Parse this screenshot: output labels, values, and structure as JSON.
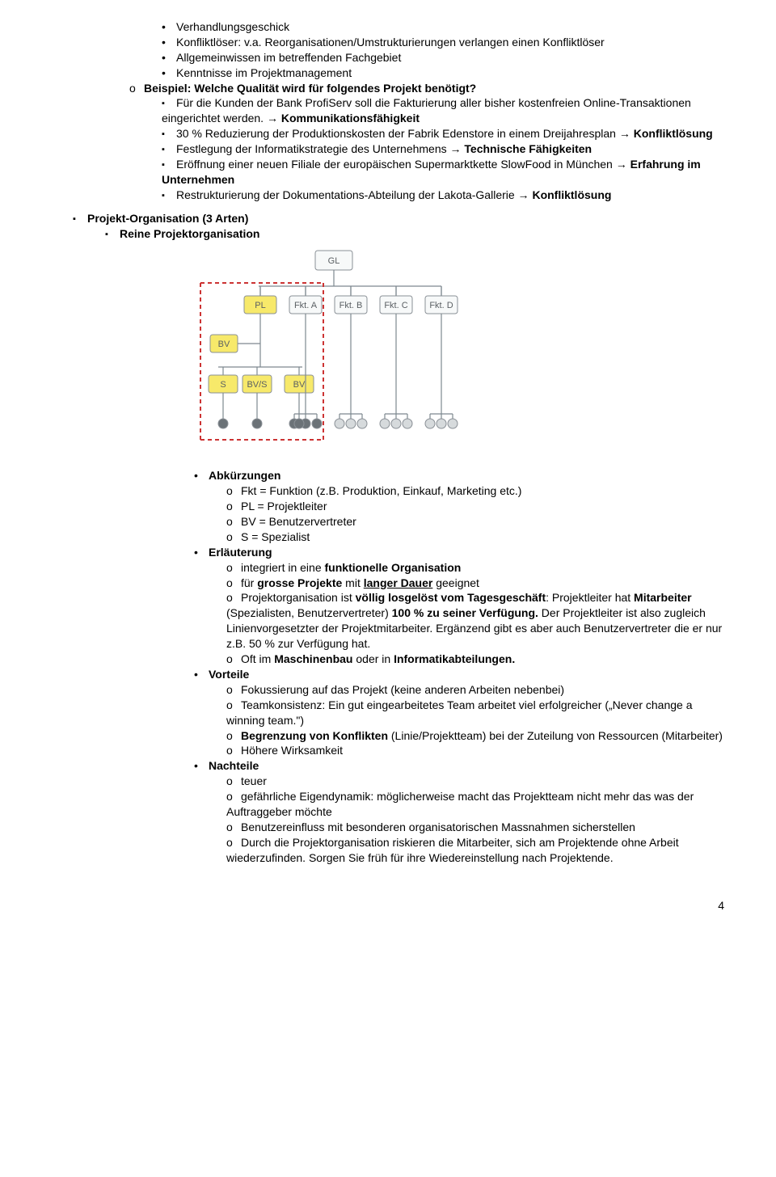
{
  "top": {
    "i1": "Verhandlungsgeschick",
    "i2": "Konfliktlöser: v.a. Reorganisationen/Umstrukturierungen verlangen einen Konfliktlöser",
    "i3": "Allgemeinwissen im betreffenden Fachgebiet",
    "i4": "Kenntnisse im Projektmanagement",
    "beispiel": "Beispiel: Welche Qualität wird für folgendes Projekt benötigt?",
    "b1a": "Für die Kunden der Bank ProfiServ soll die Fakturierung aller bisher kostenfreien Online-Transaktionen eingerichtet werden. → ",
    "b1b": "Kommunikationsfähigkeit",
    "b2a": "30 % Reduzierung der Produktionskosten der Fabrik Edenstore in einem Dreijahresplan → ",
    "b2b": "Konfliktlösung",
    "b3a": "Festlegung der Informatikstrategie des Unternehmens → ",
    "b3b": "Technische Fähigkeiten",
    "b4a": "Eröffnung einer neuen Filiale der europäischen Supermarktkette SlowFood in München → ",
    "b4b": "Erfahrung im Unternehmen",
    "b5a": "Restrukturierung der Dokumentations-Abteilung der Lakota-Gallerie → ",
    "b5b": "Konfliktlösung"
  },
  "section": {
    "title": "Projekt-Organisation (3 Arten)",
    "sub": "Reine Projektorganisation"
  },
  "diagram": {
    "bg": "#ffffff",
    "line": "#7d888f",
    "dashed": "#cc3333",
    "box_white_fill": "#f7f9f9",
    "box_yellow_fill": "#f7e96a",
    "box_border": "#8a9096",
    "text": "#5a5f63",
    "node_dark": "#6b7277",
    "node_light": "#d6dadc",
    "gl": "GL",
    "pl": "PL",
    "fa": "Fkt. A",
    "fb": "Fkt. B",
    "fc": "Fkt. C",
    "fd": "Fkt. D",
    "bv": "BV",
    "s": "S",
    "bvs": "BV/S",
    "bv2": "BV"
  },
  "abk": {
    "h": "Abkürzungen",
    "a1": "Fkt = Funktion (z.B. Produktion, Einkauf, Marketing etc.)",
    "a2": "PL = Projektleiter",
    "a3": "BV = Benutzervertreter",
    "a4": "S = Spezialist"
  },
  "erl": {
    "h": "Erläuterung",
    "e1a": "integriert in eine ",
    "e1b": "funktionelle Organisation",
    "e2a": "für ",
    "e2b": "grosse Projekte",
    "e2c": " mit ",
    "e2d": "langer Dauer",
    "e2e": " geeignet",
    "e3a": "Projektorganisation ist ",
    "e3b": "völlig losgelöst vom Tagesgeschäft",
    "e3c": ": Projektleiter hat ",
    "e3d": "Mitarbeiter",
    "e3e": " (Spezialisten, Benutzervertreter) ",
    "e3f": "100 % zu seiner Verfügung.",
    "e3g": " Der Projektleiter ist also zugleich Linienvorgesetzter der Projektmitarbeiter. Ergänzend gibt es aber auch Benutzervertreter die er nur z.B. 50 % zur Verfügung hat.",
    "e4a": "Oft im ",
    "e4b": "Maschinenbau",
    "e4c": " oder in ",
    "e4d": "Informatikabteilungen."
  },
  "vor": {
    "h": "Vorteile",
    "v1": "Fokussierung auf das Projekt (keine anderen Arbeiten nebenbei)",
    "v2": "Teamkonsistenz: Ein gut eingearbeitetes Team arbeitet viel erfolgreicher („Never change a winning team.\")",
    "v3a": "Begrenzung von Konflikten",
    "v3b": " (Linie/Projektteam) bei der Zuteilung von Ressourcen (Mitarbeiter)",
    "v4": "Höhere Wirksamkeit"
  },
  "nach": {
    "h": "Nachteile",
    "n1": "teuer",
    "n2": "gefährliche Eigendynamik: möglicherweise macht das Projektteam nicht mehr das was der Auftraggeber möchte",
    "n3": "Benutzereinfluss mit besonderen organisatorischen Massnahmen sicherstellen",
    "n4": "Durch die Projektorganisation riskieren die Mitarbeiter, sich am Projektende ohne Arbeit wiederzufinden. Sorgen Sie früh für ihre Wiedereinstellung nach Projektende."
  },
  "page": "4"
}
